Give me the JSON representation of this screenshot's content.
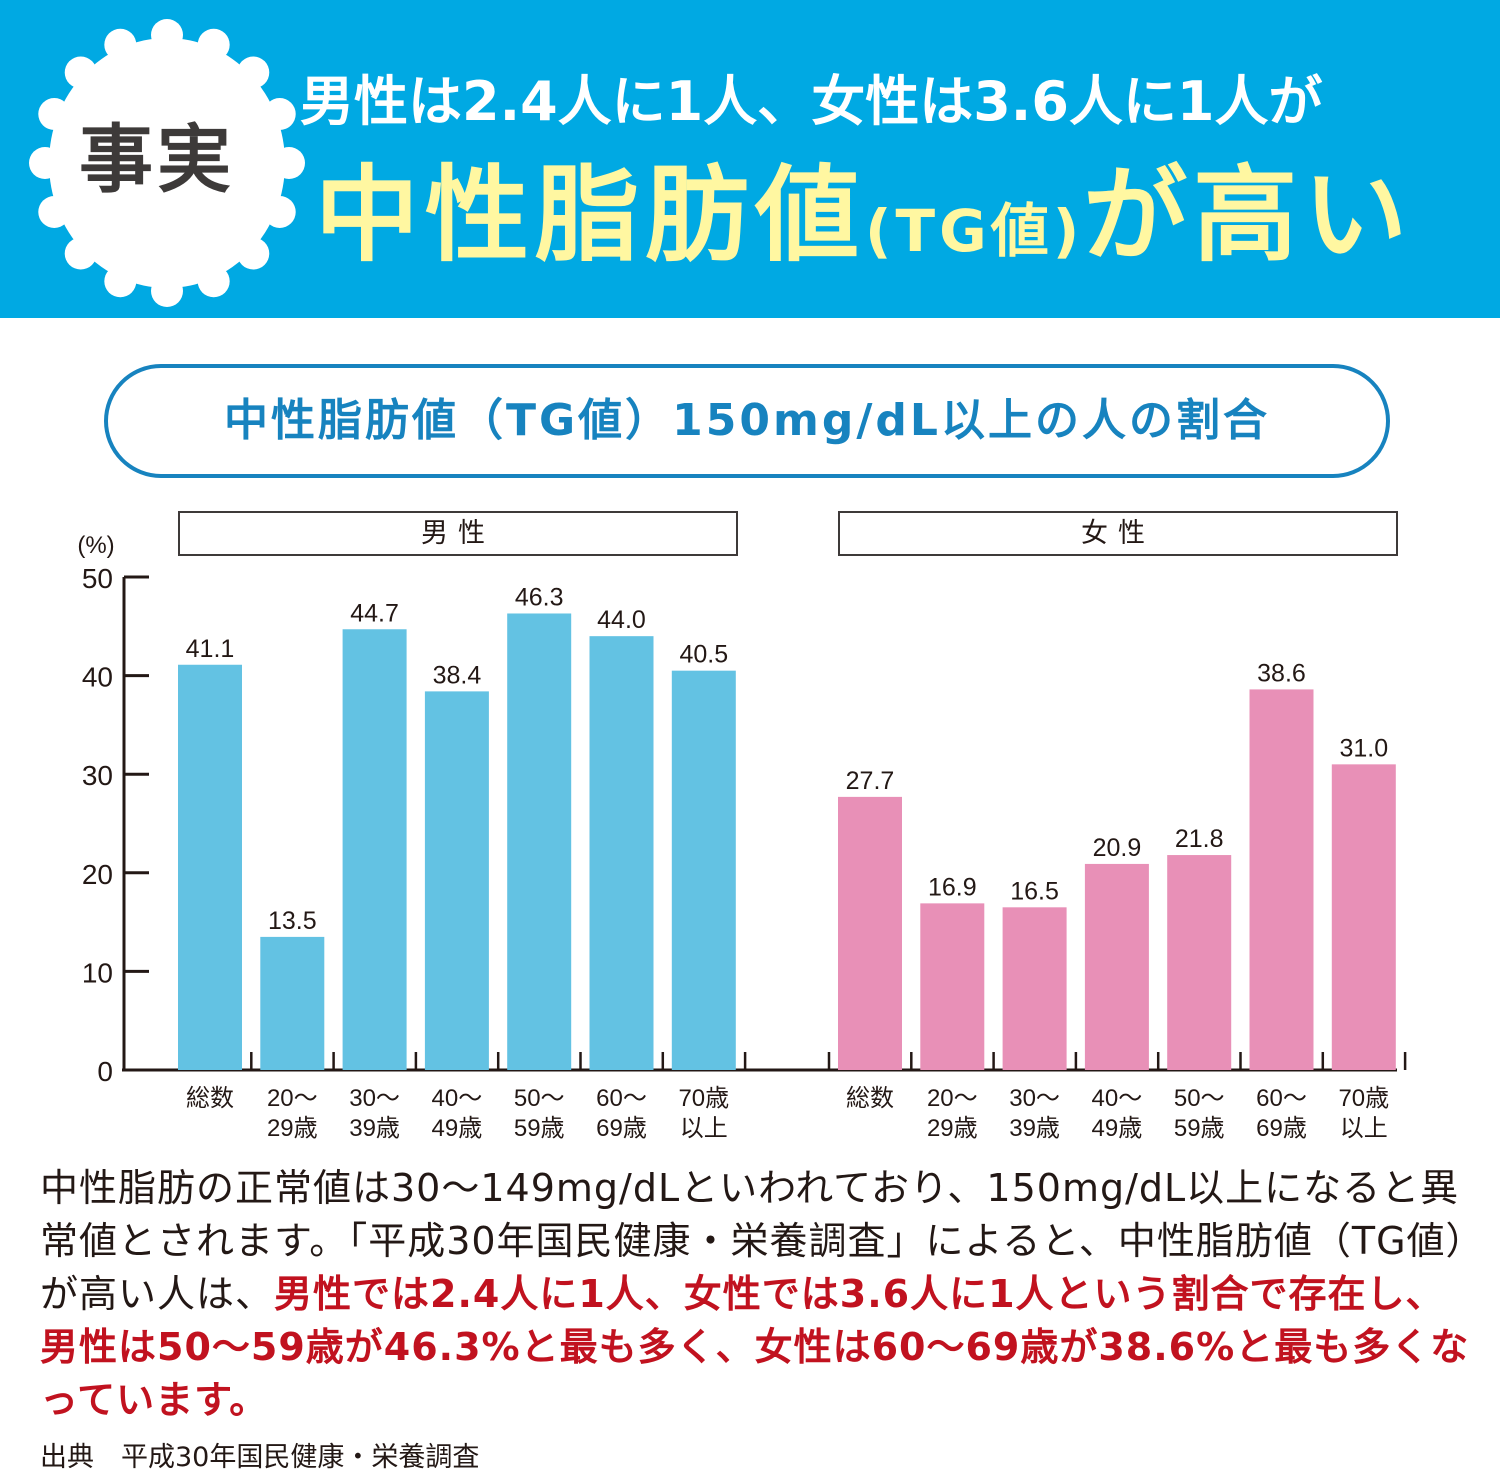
{
  "header": {
    "badge": "事実",
    "headline_line1": "男性は2.4人に1人、女性は3.6人に1人が",
    "headline_line2_part1": "中性脂肪値",
    "headline_line2_part2": "(TG値)",
    "headline_line2_part3": "が高い",
    "colors": {
      "background": "#00a9e3",
      "headline_yellow": "#fff7a1",
      "badge_text": "#3d3a39"
    }
  },
  "subtitle": "中性脂肪値（TG値）150mg/dL以上の人の割合",
  "chart_data": {
    "type": "bar",
    "title": "中性脂肪値（TG値）150mg/dL以上の人の割合",
    "ylabel": "(%)",
    "ylim": [
      0,
      50
    ],
    "yticks": [
      0,
      10,
      20,
      30,
      40,
      50
    ],
    "grid": false,
    "categories": [
      [
        "総数",
        ""
      ],
      [
        "20～",
        "29歳"
      ],
      [
        "30～",
        "39歳"
      ],
      [
        "40～",
        "49歳"
      ],
      [
        "50～",
        "59歳"
      ],
      [
        "60～",
        "69歳"
      ],
      [
        "70歳",
        "以上"
      ]
    ],
    "series": [
      {
        "name": "男性",
        "color": "#63c2e3",
        "values": [
          41.1,
          13.5,
          44.7,
          38.4,
          46.3,
          44.0,
          40.5
        ]
      },
      {
        "name": "女性",
        "color": "#e890b7",
        "values": [
          27.7,
          16.9,
          16.5,
          20.9,
          21.8,
          38.6,
          31.0
        ]
      }
    ]
  },
  "body": {
    "normal_1": "中性脂肪の正常値は30～149mg/dLといわれており、150mg/dL以上になると異常値とされます。「平成30年国民健康・栄養調査」によると、中性脂肪値（TG値）が高い人は、",
    "highlight": "男性では2.4人に1人、女性では3.6人に1人という割合で存在し、男性は50～59歳が46.3%と最も多く、女性は60～69歳が38.6%と最も多くなっています。",
    "highlight_color": "#c1121f"
  },
  "source": "出典　平成30年国民健康・栄養調査"
}
